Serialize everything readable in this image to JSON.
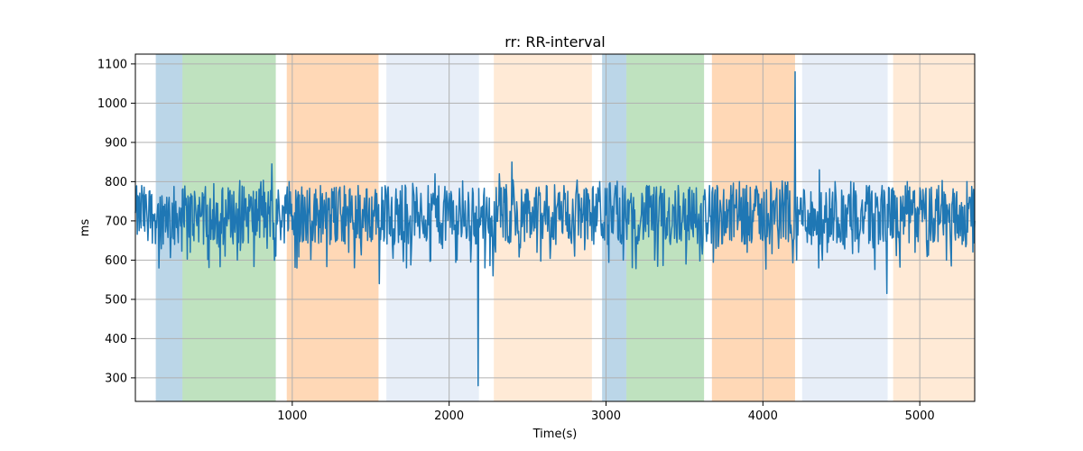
{
  "chart_data": {
    "type": "line",
    "title": "rr: RR-interval",
    "xlabel": "Time(s)",
    "ylabel": "ms",
    "xlim": [
      0,
      5350
    ],
    "ylim": [
      240,
      1125
    ],
    "xticks": [
      1000,
      2000,
      3000,
      4000,
      5000
    ],
    "yticks": [
      300,
      400,
      500,
      600,
      700,
      800,
      900,
      1000,
      1100
    ],
    "grid": true,
    "line_color": "#1f77b4",
    "bands": [
      {
        "x0": 130,
        "x1": 300,
        "color": "#1f77b4",
        "opacity": 0.3
      },
      {
        "x0": 300,
        "x1": 895,
        "color": "#2ca02c",
        "opacity": 0.3
      },
      {
        "x0": 965,
        "x1": 1550,
        "color": "#ff7f0e",
        "opacity": 0.3
      },
      {
        "x0": 1600,
        "x1": 2190,
        "color": "#aec7e8",
        "opacity": 0.3
      },
      {
        "x0": 2285,
        "x1": 2910,
        "color": "#ffbb78",
        "opacity": 0.3
      },
      {
        "x0": 2975,
        "x1": 3130,
        "color": "#1f77b4",
        "opacity": 0.3
      },
      {
        "x0": 3130,
        "x1": 3625,
        "color": "#2ca02c",
        "opacity": 0.3
      },
      {
        "x0": 3675,
        "x1": 4205,
        "color": "#ff7f0e",
        "opacity": 0.3
      },
      {
        "x0": 4250,
        "x1": 4795,
        "color": "#aec7e8",
        "opacity": 0.3
      },
      {
        "x0": 4830,
        "x1": 5350,
        "color": "#ffbb78",
        "opacity": 0.3
      }
    ],
    "series": [
      {
        "values_summary": {
          "mean": 715,
          "typical_low": 600,
          "typical_high": 800
        },
        "points": [
          [
            0,
            720
          ],
          [
            40,
            790
          ],
          [
            80,
            650
          ],
          [
            120,
            700
          ],
          [
            150,
            580
          ],
          [
            200,
            760
          ],
          [
            250,
            640
          ],
          [
            300,
            780
          ],
          [
            350,
            620
          ],
          [
            400,
            740
          ],
          [
            450,
            690
          ],
          [
            500,
            795
          ],
          [
            560,
            640
          ],
          [
            600,
            770
          ],
          [
            650,
            600
          ],
          [
            700,
            755
          ],
          [
            760,
            690
          ],
          [
            800,
            800
          ],
          [
            840,
            630
          ],
          [
            870,
            845
          ],
          [
            895,
            610
          ],
          [
            930,
            700
          ],
          [
            980,
            800
          ],
          [
            1030,
            580
          ],
          [
            1080,
            760
          ],
          [
            1130,
            650
          ],
          [
            1180,
            790
          ],
          [
            1240,
            640
          ],
          [
            1300,
            780
          ],
          [
            1360,
            620
          ],
          [
            1420,
            790
          ],
          [
            1480,
            650
          ],
          [
            1530,
            780
          ],
          [
            1555,
            540
          ],
          [
            1600,
            760
          ],
          [
            1650,
            640
          ],
          [
            1700,
            790
          ],
          [
            1760,
            630
          ],
          [
            1820,
            770
          ],
          [
            1870,
            690
          ],
          [
            1910,
            820
          ],
          [
            1950,
            640
          ],
          [
            2000,
            770
          ],
          [
            2050,
            600
          ],
          [
            2090,
            730
          ],
          [
            2130,
            650
          ],
          [
            2165,
            720
          ],
          [
            2185,
            280
          ],
          [
            2200,
            690
          ],
          [
            2240,
            760
          ],
          [
            2280,
            560
          ],
          [
            2320,
            820
          ],
          [
            2360,
            650
          ],
          [
            2400,
            850
          ],
          [
            2450,
            640
          ],
          [
            2500,
            780
          ],
          [
            2560,
            620
          ],
          [
            2620,
            790
          ],
          [
            2680,
            640
          ],
          [
            2740,
            770
          ],
          [
            2800,
            610
          ],
          [
            2860,
            780
          ],
          [
            2910,
            650
          ],
          [
            2960,
            800
          ],
          [
            3010,
            640
          ],
          [
            3060,
            790
          ],
          [
            3110,
            600
          ],
          [
            3160,
            770
          ],
          [
            3210,
            650
          ],
          [
            3260,
            790
          ],
          [
            3310,
            600
          ],
          [
            3360,
            770
          ],
          [
            3410,
            640
          ],
          [
            3460,
            790
          ],
          [
            3510,
            590
          ],
          [
            3560,
            770
          ],
          [
            3610,
            640
          ],
          [
            3660,
            790
          ],
          [
            3700,
            630
          ],
          [
            3750,
            780
          ],
          [
            3800,
            650
          ],
          [
            3850,
            800
          ],
          [
            3900,
            620
          ],
          [
            3950,
            780
          ],
          [
            4000,
            650
          ],
          [
            4050,
            800
          ],
          [
            4100,
            630
          ],
          [
            4150,
            790
          ],
          [
            4195,
            650
          ],
          [
            4205,
            1080
          ],
          [
            4215,
            600
          ],
          [
            4260,
            780
          ],
          [
            4310,
            640
          ],
          [
            4360,
            830
          ],
          [
            4410,
            620
          ],
          [
            4460,
            800
          ],
          [
            4510,
            640
          ],
          [
            4560,
            800
          ],
          [
            4610,
            620
          ],
          [
            4660,
            790
          ],
          [
            4710,
            650
          ],
          [
            4760,
            790
          ],
          [
            4790,
            515
          ],
          [
            4820,
            780
          ],
          [
            4870,
            640
          ],
          [
            4920,
            800
          ],
          [
            4970,
            620
          ],
          [
            5020,
            780
          ],
          [
            5070,
            650
          ],
          [
            5120,
            790
          ],
          [
            5170,
            600
          ],
          [
            5220,
            770
          ],
          [
            5270,
            640
          ],
          [
            5320,
            760
          ],
          [
            5350,
            700
          ]
        ]
      }
    ]
  }
}
